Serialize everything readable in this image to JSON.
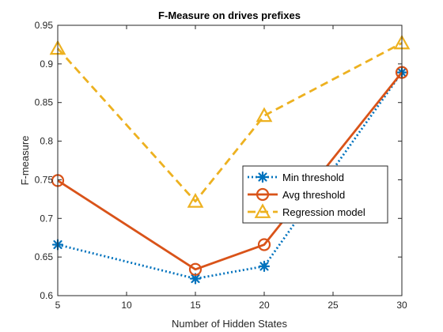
{
  "chart_data": {
    "type": "line",
    "title": "F-Measure on drives prefixes",
    "xlabel": "Number of Hidden States",
    "ylabel": "F-measure",
    "xlim": [
      5,
      30
    ],
    "ylim": [
      0.6,
      0.95
    ],
    "xticks": [
      5,
      10,
      15,
      20,
      25,
      30
    ],
    "yticks": [
      0.6,
      0.65,
      0.7,
      0.75,
      0.8,
      0.85,
      0.9,
      0.95
    ],
    "grid": false,
    "legend_position": "right",
    "x": [
      5,
      15,
      20,
      30
    ],
    "series": [
      {
        "name": "Min threshold",
        "values": [
          0.666,
          0.622,
          0.638,
          0.889
        ],
        "color": "#0072BD",
        "line_style": "dotted",
        "marker": "asterisk"
      },
      {
        "name": "Avg threshold",
        "values": [
          0.749,
          0.634,
          0.666,
          0.889
        ],
        "color": "#D95319",
        "line_style": "solid",
        "marker": "circle"
      },
      {
        "name": "Regression model",
        "values": [
          0.92,
          0.722,
          0.833,
          0.927
        ],
        "color": "#EDB120",
        "line_style": "dashed",
        "marker": "triangle"
      }
    ]
  }
}
